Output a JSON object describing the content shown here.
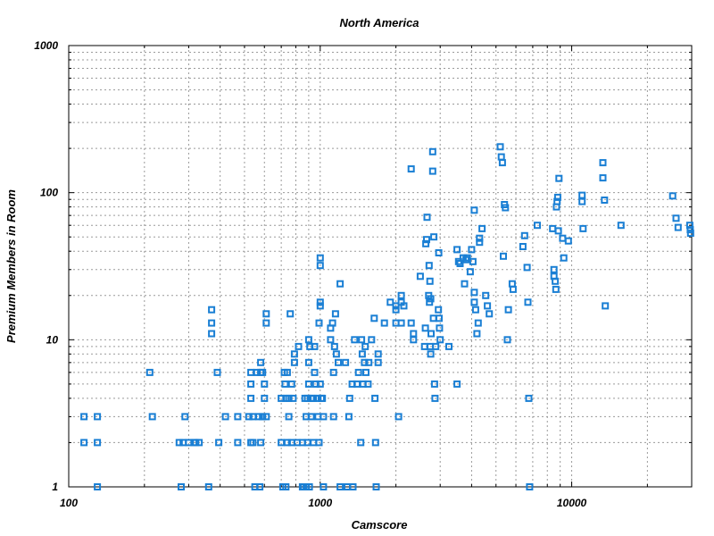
{
  "chart_data": {
    "type": "scatter",
    "title": "North America",
    "xlabel": "Camscore",
    "ylabel": "Premium Members in Room",
    "xscale": "log",
    "yscale": "log",
    "xlim": [
      100,
      30000
    ],
    "ylim": [
      1,
      1000
    ],
    "x_ticks": [
      "100",
      "1000",
      "10000"
    ],
    "y_ticks": [
      "1",
      "10",
      "100",
      "1000"
    ],
    "grid": true,
    "marker": "open-square",
    "color": "#1a7fd4",
    "points": [
      [
        115,
        3
      ],
      [
        115,
        2
      ],
      [
        130,
        3
      ],
      [
        130,
        2
      ],
      [
        130,
        1
      ],
      [
        210,
        6
      ],
      [
        215,
        3
      ],
      [
        275,
        2
      ],
      [
        280,
        1
      ],
      [
        285,
        2
      ],
      [
        290,
        3
      ],
      [
        300,
        2
      ],
      [
        315,
        2
      ],
      [
        320,
        2
      ],
      [
        330,
        2
      ],
      [
        360,
        1
      ],
      [
        370,
        16
      ],
      [
        370,
        13
      ],
      [
        370,
        11
      ],
      [
        390,
        6
      ],
      [
        395,
        2
      ],
      [
        420,
        3
      ],
      [
        470,
        2
      ],
      [
        470,
        3
      ],
      [
        520,
        3
      ],
      [
        530,
        6
      ],
      [
        530,
        5
      ],
      [
        530,
        4
      ],
      [
        530,
        2
      ],
      [
        540,
        3
      ],
      [
        540,
        2
      ],
      [
        550,
        1
      ],
      [
        560,
        6
      ],
      [
        570,
        3
      ],
      [
        575,
        1
      ],
      [
        580,
        7
      ],
      [
        580,
        6
      ],
      [
        580,
        2
      ],
      [
        590,
        6
      ],
      [
        590,
        3
      ],
      [
        600,
        5
      ],
      [
        600,
        4
      ],
      [
        610,
        15
      ],
      [
        610,
        13
      ],
      [
        610,
        3
      ],
      [
        700,
        4
      ],
      [
        700,
        2
      ],
      [
        710,
        1
      ],
      [
        720,
        6
      ],
      [
        725,
        5
      ],
      [
        730,
        4
      ],
      [
        730,
        1
      ],
      [
        740,
        6
      ],
      [
        740,
        2
      ],
      [
        750,
        4
      ],
      [
        750,
        3
      ],
      [
        760,
        15
      ],
      [
        770,
        5
      ],
      [
        770,
        2
      ],
      [
        780,
        4
      ],
      [
        790,
        8
      ],
      [
        790,
        7
      ],
      [
        810,
        2
      ],
      [
        820,
        9
      ],
      [
        850,
        2
      ],
      [
        850,
        1
      ],
      [
        860,
        1
      ],
      [
        870,
        4
      ],
      [
        880,
        1
      ],
      [
        880,
        3
      ],
      [
        890,
        2
      ],
      [
        890,
        4
      ],
      [
        900,
        10
      ],
      [
        900,
        5
      ],
      [
        900,
        7
      ],
      [
        905,
        1
      ],
      [
        910,
        9
      ],
      [
        920,
        4
      ],
      [
        920,
        3
      ],
      [
        940,
        4
      ],
      [
        940,
        2
      ],
      [
        950,
        9
      ],
      [
        950,
        6
      ],
      [
        960,
        5
      ],
      [
        980,
        3
      ],
      [
        980,
        4
      ],
      [
        990,
        13
      ],
      [
        990,
        2
      ],
      [
        1000,
        5
      ],
      [
        1000,
        18
      ],
      [
        1000,
        17
      ],
      [
        1000,
        36
      ],
      [
        1000,
        32
      ],
      [
        1010,
        4
      ],
      [
        1020,
        4
      ],
      [
        1030,
        3
      ],
      [
        1030,
        1
      ],
      [
        1100,
        10
      ],
      [
        1100,
        12
      ],
      [
        1120,
        13
      ],
      [
        1130,
        3
      ],
      [
        1130,
        6
      ],
      [
        1140,
        9
      ],
      [
        1150,
        15
      ],
      [
        1160,
        8
      ],
      [
        1180,
        7
      ],
      [
        1200,
        24
      ],
      [
        1200,
        1
      ],
      [
        1260,
        7
      ],
      [
        1280,
        1
      ],
      [
        1300,
        3
      ],
      [
        1310,
        4
      ],
      [
        1340,
        5
      ],
      [
        1350,
        1
      ],
      [
        1370,
        10
      ],
      [
        1400,
        5
      ],
      [
        1420,
        6
      ],
      [
        1450,
        2
      ],
      [
        1460,
        10
      ],
      [
        1470,
        8
      ],
      [
        1480,
        5
      ],
      [
        1500,
        7
      ],
      [
        1510,
        9
      ],
      [
        1520,
        6
      ],
      [
        1550,
        5
      ],
      [
        1560,
        7
      ],
      [
        1600,
        10
      ],
      [
        1640,
        14
      ],
      [
        1650,
        4
      ],
      [
        1660,
        2
      ],
      [
        1670,
        1
      ],
      [
        1700,
        7
      ],
      [
        1700,
        8
      ],
      [
        1800,
        13
      ],
      [
        1900,
        18
      ],
      [
        2000,
        16
      ],
      [
        2000,
        17
      ],
      [
        2000,
        13
      ],
      [
        2050,
        3
      ],
      [
        2100,
        13
      ],
      [
        2100,
        20
      ],
      [
        2100,
        18
      ],
      [
        2150,
        17
      ],
      [
        2300,
        145
      ],
      [
        2300,
        13
      ],
      [
        2350,
        11
      ],
      [
        2350,
        10
      ],
      [
        2500,
        27
      ],
      [
        2600,
        9
      ],
      [
        2620,
        12
      ],
      [
        2630,
        45
      ],
      [
        2650,
        48
      ],
      [
        2660,
        68
      ],
      [
        2700,
        20
      ],
      [
        2710,
        32
      ],
      [
        2720,
        18
      ],
      [
        2730,
        25
      ],
      [
        2740,
        9
      ],
      [
        2750,
        8
      ],
      [
        2750,
        19
      ],
      [
        2760,
        11
      ],
      [
        2800,
        190
      ],
      [
        2800,
        140
      ],
      [
        2820,
        14
      ],
      [
        2830,
        50
      ],
      [
        2850,
        5
      ],
      [
        2860,
        4
      ],
      [
        2880,
        9
      ],
      [
        2950,
        16
      ],
      [
        2960,
        39
      ],
      [
        2970,
        14
      ],
      [
        2980,
        12
      ],
      [
        3000,
        10
      ],
      [
        3250,
        9
      ],
      [
        3500,
        5
      ],
      [
        3500,
        41
      ],
      [
        3550,
        34
      ],
      [
        3600,
        33
      ],
      [
        3700,
        36
      ],
      [
        3750,
        24
      ],
      [
        3800,
        35
      ],
      [
        3850,
        36
      ],
      [
        3950,
        29
      ],
      [
        4000,
        41
      ],
      [
        4050,
        34
      ],
      [
        4100,
        76
      ],
      [
        4100,
        21
      ],
      [
        4100,
        18
      ],
      [
        4150,
        16
      ],
      [
        4200,
        11
      ],
      [
        4250,
        13
      ],
      [
        4300,
        46
      ],
      [
        4300,
        49
      ],
      [
        4400,
        57
      ],
      [
        4550,
        20
      ],
      [
        4620,
        17
      ],
      [
        4700,
        15
      ],
      [
        5200,
        205
      ],
      [
        5250,
        175
      ],
      [
        5300,
        160
      ],
      [
        5350,
        37
      ],
      [
        5400,
        83
      ],
      [
        5450,
        79
      ],
      [
        5550,
        10
      ],
      [
        5600,
        16
      ],
      [
        5800,
        24
      ],
      [
        5850,
        22
      ],
      [
        6400,
        43
      ],
      [
        6500,
        51
      ],
      [
        6650,
        31
      ],
      [
        6700,
        18
      ],
      [
        6750,
        4
      ],
      [
        6800,
        1
      ],
      [
        7300,
        60
      ],
      [
        8400,
        57
      ],
      [
        8500,
        30
      ],
      [
        8500,
        27
      ],
      [
        8600,
        25
      ],
      [
        8650,
        22
      ],
      [
        8700,
        80
      ],
      [
        8750,
        87
      ],
      [
        8800,
        93
      ],
      [
        8850,
        55
      ],
      [
        8900,
        125
      ],
      [
        9200,
        49
      ],
      [
        9300,
        36
      ],
      [
        9700,
        47
      ],
      [
        11000,
        96
      ],
      [
        11000,
        87
      ],
      [
        11100,
        57
      ],
      [
        13300,
        160
      ],
      [
        13300,
        126
      ],
      [
        13500,
        89
      ],
      [
        13600,
        17
      ],
      [
        15700,
        60
      ],
      [
        25200,
        95
      ],
      [
        26000,
        67
      ],
      [
        26500,
        58
      ],
      [
        29500,
        60
      ],
      [
        29600,
        56
      ],
      [
        29700,
        53
      ]
    ]
  }
}
